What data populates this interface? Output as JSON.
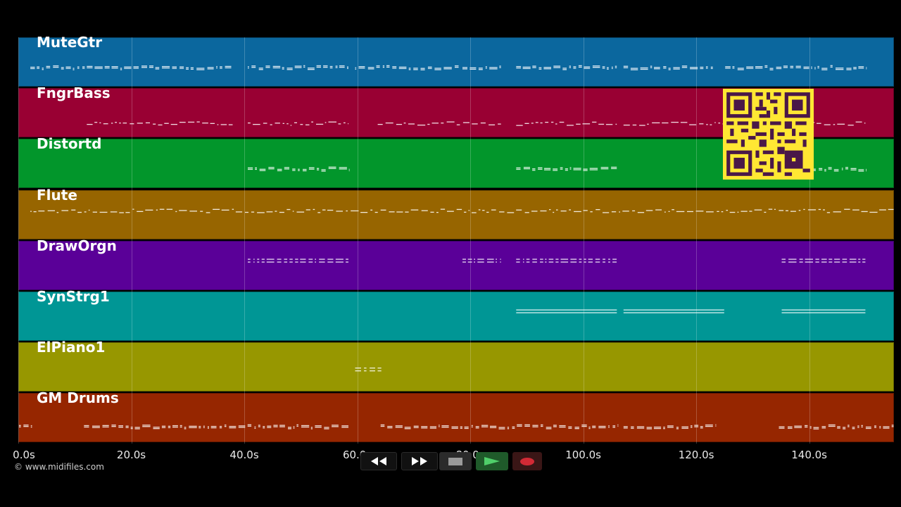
{
  "timeline": {
    "max_seconds": 155,
    "ticks": [
      "0.0s",
      "20.0s",
      "40.0s",
      "60.0s",
      "80.0s",
      "100.0s",
      "120.0s",
      "140.0s"
    ],
    "tick_values": [
      0,
      20,
      40,
      60,
      80,
      100,
      120,
      140
    ]
  },
  "tracks": [
    {
      "name": "MuteGtr",
      "color": "#0b679e",
      "segments": [
        [
          2,
          12
        ],
        [
          12,
          38
        ],
        [
          40.5,
          58.5
        ],
        [
          59.5,
          78
        ],
        [
          78.5,
          85.5
        ],
        [
          88,
          106
        ],
        [
          107,
          123
        ],
        [
          125,
          150
        ]
      ],
      "note_row": 0.58,
      "style": "dense"
    },
    {
      "name": "FngrBass",
      "color": "#990033",
      "segments": [
        [
          12,
          38
        ],
        [
          40.5,
          58.5
        ],
        [
          63.5,
          85.5
        ],
        [
          88,
          106
        ],
        [
          107,
          131
        ],
        [
          134,
          150
        ]
      ],
      "note_row": 0.7,
      "style": "wave"
    },
    {
      "name": "Distortd",
      "color": "#02962b",
      "segments": [
        [
          40.5,
          58.5
        ],
        [
          88,
          106
        ],
        [
          140,
          150
        ]
      ],
      "note_row": 0.58,
      "style": "dense"
    },
    {
      "name": "Flute",
      "color": "#976500",
      "segments": [
        [
          2,
          155
        ]
      ],
      "note_row": 0.4,
      "style": "wave"
    },
    {
      "name": "DrawOrgn",
      "color": "#5a0098",
      "segments": [
        [
          40.5,
          58.5
        ],
        [
          78.5,
          85.5
        ],
        [
          88,
          106
        ],
        [
          135,
          150
        ]
      ],
      "note_row": 0.35,
      "style": "double"
    },
    {
      "name": "SynStrg1",
      "color": "#009695",
      "segments": [
        [
          88,
          106
        ],
        [
          107,
          125
        ],
        [
          135,
          150
        ]
      ],
      "note_row": 0.35,
      "style": "lines"
    },
    {
      "name": "ElPiano1",
      "color": "#979700",
      "segments": [
        [
          59.5,
          64.5
        ]
      ],
      "note_row": 0.5,
      "style": "double"
    },
    {
      "name": "GM Drums",
      "color": "#962600",
      "segments": [
        [
          0,
          2.5
        ],
        [
          11.5,
          58.5
        ],
        [
          64,
          106
        ],
        [
          107,
          123.5
        ],
        [
          134.5,
          155
        ]
      ],
      "note_row": 0.65,
      "style": "dense"
    }
  ],
  "transport": {
    "rewind_icon": "rewind-icon",
    "forward_icon": "fast-forward-icon",
    "stop_icon": "stop-icon",
    "play_icon": "play-icon",
    "record_icon": "record-icon"
  },
  "copyright": "© www.midifiles.com"
}
